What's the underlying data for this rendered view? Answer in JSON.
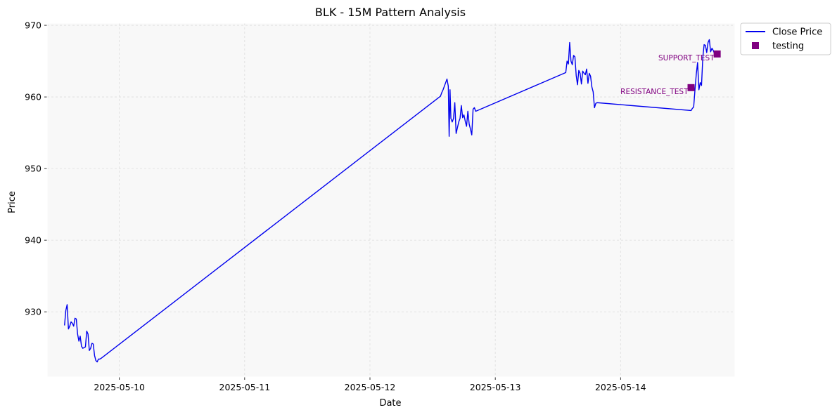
{
  "chart_data": {
    "type": "line",
    "title": "BLK - 15M Pattern Analysis",
    "xlabel": "Date",
    "ylabel": "Price",
    "xlim": [
      "2025-05-09 10:10",
      "2025-05-14 21:55"
    ],
    "ylim": [
      920.9,
      970.3
    ],
    "x_ticks": [
      "2025-05-10",
      "2025-05-11",
      "2025-05-12",
      "2025-05-13",
      "2025-05-14"
    ],
    "y_ticks": [
      930,
      940,
      950,
      960,
      970
    ],
    "grid": true,
    "legend_position": "outside-top-right",
    "colors": {
      "line": "#0000ee",
      "marker": "#800080",
      "plot_background": "#f8f8f8",
      "grid": "#dddddd"
    },
    "series": [
      {
        "name": "Close Price",
        "kind": "line",
        "points": [
          [
            "2025-05-09 13:30",
            928.1
          ],
          [
            "2025-05-09 13:45",
            930.2
          ],
          [
            "2025-05-09 14:00",
            931.0
          ],
          [
            "2025-05-09 14:15",
            927.6
          ],
          [
            "2025-05-09 14:30",
            928.0
          ],
          [
            "2025-05-09 14:45",
            928.6
          ],
          [
            "2025-05-09 15:00",
            928.4
          ],
          [
            "2025-05-09 15:15",
            928.0
          ],
          [
            "2025-05-09 15:30",
            929.1
          ],
          [
            "2025-05-09 15:45",
            929.0
          ],
          [
            "2025-05-09 16:00",
            926.9
          ],
          [
            "2025-05-09 16:15",
            925.9
          ],
          [
            "2025-05-09 16:30",
            926.6
          ],
          [
            "2025-05-09 16:45",
            925.2
          ],
          [
            "2025-05-09 17:00",
            924.9
          ],
          [
            "2025-05-09 17:15",
            925.0
          ],
          [
            "2025-05-09 17:30",
            925.1
          ],
          [
            "2025-05-09 17:45",
            927.3
          ],
          [
            "2025-05-09 18:00",
            926.9
          ],
          [
            "2025-05-09 18:15",
            924.6
          ],
          [
            "2025-05-09 18:30",
            924.9
          ],
          [
            "2025-05-09 18:45",
            925.6
          ],
          [
            "2025-05-09 19:00",
            925.5
          ],
          [
            "2025-05-09 19:15",
            923.9
          ],
          [
            "2025-05-09 19:30",
            923.2
          ],
          [
            "2025-05-09 19:45",
            923.0
          ],
          [
            "2025-05-09 20:00",
            923.4
          ],
          [
            "2025-05-09 20:15",
            923.4
          ],
          [
            "2025-05-09 20:30",
            923.5
          ],
          [
            "2025-05-12 13:30",
            960.1
          ],
          [
            "2025-05-12 13:45",
            960.6
          ],
          [
            "2025-05-12 14:00",
            961.0
          ],
          [
            "2025-05-12 14:15",
            961.5
          ],
          [
            "2025-05-12 14:30",
            962.0
          ],
          [
            "2025-05-12 14:45",
            962.5
          ],
          [
            "2025-05-12 15:00",
            961.5
          ],
          [
            "2025-05-12 15:10",
            954.5
          ],
          [
            "2025-05-12 15:20",
            961.0
          ],
          [
            "2025-05-12 15:30",
            957.0
          ],
          [
            "2025-05-12 15:45",
            956.5
          ],
          [
            "2025-05-12 16:00",
            957.0
          ],
          [
            "2025-05-12 16:15",
            959.2
          ],
          [
            "2025-05-12 16:30",
            954.9
          ],
          [
            "2025-05-12 16:45",
            955.7
          ],
          [
            "2025-05-12 17:00",
            956.5
          ],
          [
            "2025-05-12 17:15",
            957.0
          ],
          [
            "2025-05-12 17:30",
            958.8
          ],
          [
            "2025-05-12 17:45",
            957.1
          ],
          [
            "2025-05-12 18:00",
            957.5
          ],
          [
            "2025-05-12 18:15",
            956.6
          ],
          [
            "2025-05-12 18:30",
            955.9
          ],
          [
            "2025-05-12 18:45",
            958.0
          ],
          [
            "2025-05-12 19:00",
            956.2
          ],
          [
            "2025-05-12 19:15",
            955.5
          ],
          [
            "2025-05-12 19:30",
            954.7
          ],
          [
            "2025-05-12 19:45",
            958.3
          ],
          [
            "2025-05-12 20:00",
            958.5
          ],
          [
            "2025-05-12 20:15",
            958.0
          ],
          [
            "2025-05-13 13:30",
            963.4
          ],
          [
            "2025-05-13 13:45",
            965.0
          ],
          [
            "2025-05-13 14:00",
            964.6
          ],
          [
            "2025-05-13 14:15",
            967.6
          ],
          [
            "2025-05-13 14:30",
            965.0
          ],
          [
            "2025-05-13 14:45",
            964.5
          ],
          [
            "2025-05-13 15:00",
            965.8
          ],
          [
            "2025-05-13 15:15",
            965.6
          ],
          [
            "2025-05-13 15:30",
            963.0
          ],
          [
            "2025-05-13 15:45",
            961.7
          ],
          [
            "2025-05-13 16:00",
            963.7
          ],
          [
            "2025-05-13 16:15",
            963.3
          ],
          [
            "2025-05-13 16:30",
            961.8
          ],
          [
            "2025-05-13 16:45",
            963.6
          ],
          [
            "2025-05-13 17:00",
            963.3
          ],
          [
            "2025-05-13 17:15",
            963.1
          ],
          [
            "2025-05-13 17:30",
            963.9
          ],
          [
            "2025-05-13 17:45",
            961.9
          ],
          [
            "2025-05-13 18:00",
            963.3
          ],
          [
            "2025-05-13 18:15",
            962.9
          ],
          [
            "2025-05-13 18:30",
            961.4
          ],
          [
            "2025-05-13 18:45",
            960.7
          ],
          [
            "2025-05-13 19:00",
            958.5
          ],
          [
            "2025-05-13 19:15",
            959.1
          ],
          [
            "2025-05-13 19:30",
            959.2
          ],
          [
            "2025-05-14 13:30",
            958.1
          ],
          [
            "2025-05-14 13:45",
            958.4
          ],
          [
            "2025-05-14 14:00",
            958.6
          ],
          [
            "2025-05-14 14:15",
            961.0
          ],
          [
            "2025-05-14 14:30",
            963.2
          ],
          [
            "2025-05-14 14:45",
            964.8
          ],
          [
            "2025-05-14 15:00",
            961.0
          ],
          [
            "2025-05-14 15:15",
            962.0
          ],
          [
            "2025-05-14 15:30",
            961.6
          ],
          [
            "2025-05-14 15:45",
            965.5
          ],
          [
            "2025-05-14 16:00",
            967.3
          ],
          [
            "2025-05-14 16:15",
            967.2
          ],
          [
            "2025-05-14 16:30",
            966.2
          ],
          [
            "2025-05-14 16:45",
            967.6
          ],
          [
            "2025-05-14 17:00",
            968.0
          ],
          [
            "2025-05-14 17:15",
            966.3
          ],
          [
            "2025-05-14 17:30",
            966.8
          ],
          [
            "2025-05-14 17:45",
            966.5
          ],
          [
            "2025-05-14 18:00",
            966.0
          ]
        ]
      },
      {
        "name": "testing",
        "kind": "marker",
        "marker": "square",
        "points": [
          [
            "2025-05-14 13:30",
            961.3
          ],
          [
            "2025-05-14 18:30",
            966.0
          ]
        ]
      }
    ],
    "annotations": [
      {
        "text": "RESISTANCE_TEST",
        "x": "2025-05-14 13:30",
        "y": 961.3
      },
      {
        "text": "SUPPORT_TEST",
        "x": "2025-05-14 18:30",
        "y": 966.0
      }
    ]
  }
}
